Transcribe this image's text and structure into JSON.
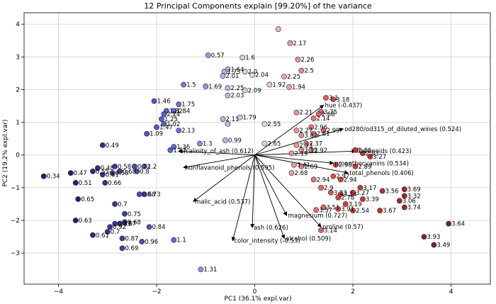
{
  "chart_data": {
    "type": "scatter",
    "title": "12 Principal Components explain [99.20%] of the variance",
    "xlabel": "PC1 (36.1% expl.var)",
    "ylabel": "PC2 (19.2% expl.var)",
    "xlim": [
      -4.7,
      4.8
    ],
    "ylim": [
      -3.95,
      4.35
    ],
    "xticks": [
      -4,
      -2,
      0,
      2,
      4
    ],
    "yticks": [
      -3,
      -2,
      -1,
      0,
      1,
      2,
      3,
      4
    ],
    "grid": true,
    "points": [
      {
        "x": 0.48,
        "y": 3.85,
        "label": ""
      },
      {
        "x": 0.72,
        "y": 3.42,
        "label": "2.17"
      },
      {
        "x": -0.95,
        "y": 3.05,
        "label": "0.57"
      },
      {
        "x": -0.25,
        "y": 2.98,
        "label": "1.6"
      },
      {
        "x": 0.88,
        "y": 2.92,
        "label": "2.26"
      },
      {
        "x": 0.95,
        "y": 2.58,
        "label": "2.5"
      },
      {
        "x": -0.55,
        "y": 2.62,
        "label": "1.64"
      },
      {
        "x": -0.62,
        "y": 2.55,
        "label": "1.73"
      },
      {
        "x": -0.65,
        "y": 2.42,
        "label": "2.01"
      },
      {
        "x": -0.2,
        "y": 2.55,
        "label": "2.0"
      },
      {
        "x": -0.05,
        "y": 2.45,
        "label": "2.04"
      },
      {
        "x": 0.6,
        "y": 2.4,
        "label": "2.25"
      },
      {
        "x": -1.45,
        "y": 2.15,
        "label": "1.5"
      },
      {
        "x": -1.0,
        "y": 2.1,
        "label": "1.69"
      },
      {
        "x": -0.55,
        "y": 2.05,
        "label": "2.25"
      },
      {
        "x": -0.55,
        "y": 1.82,
        "label": "2.03"
      },
      {
        "x": -0.2,
        "y": 1.98,
        "label": "2.09"
      },
      {
        "x": 0.3,
        "y": 2.15,
        "label": "1.92"
      },
      {
        "x": 0.7,
        "y": 2.08,
        "label": "1.94"
      },
      {
        "x": -2.05,
        "y": 1.65,
        "label": "1.46"
      },
      {
        "x": -1.55,
        "y": 1.55,
        "label": "1.75"
      },
      {
        "x": -1.65,
        "y": 1.35,
        "label": "1.84"
      },
      {
        "x": -1.8,
        "y": 1.35,
        "label": "1.82"
      },
      {
        "x": -1.85,
        "y": 1.25,
        "label": "2.24"
      },
      {
        "x": -1.9,
        "y": 1.1,
        "label": "1.25"
      },
      {
        "x": -1.85,
        "y": 0.95,
        "label": "1.02"
      },
      {
        "x": -2.0,
        "y": 0.85,
        "label": "1.47"
      },
      {
        "x": -1.55,
        "y": 0.75,
        "label": "2.13"
      },
      {
        "x": -2.2,
        "y": 0.65,
        "label": "1.09"
      },
      {
        "x": -0.3,
        "y": 1.15,
        "label": "1.79"
      },
      {
        "x": -0.65,
        "y": 1.1,
        "label": "2.11"
      },
      {
        "x": 0.2,
        "y": 0.95,
        "label": "2.55"
      },
      {
        "x": 0.85,
        "y": 1.3,
        "label": "2.21"
      },
      {
        "x": -0.55,
        "y": 0.95,
        "label": ""
      },
      {
        "x": -0.6,
        "y": 0.45,
        "label": "0.99"
      },
      {
        "x": -1.65,
        "y": 0.25,
        "label": "1.36"
      },
      {
        "x": -1.72,
        "y": 0.15,
        "label": "1.57"
      },
      {
        "x": -1.12,
        "y": 0.35,
        "label": "1.3"
      },
      {
        "x": 0.2,
        "y": 0.35,
        "label": "2.65"
      },
      {
        "x": 1.45,
        "y": 1.75,
        "label": "3.1"
      },
      {
        "x": 1.6,
        "y": 1.7,
        "label": "3.18"
      },
      {
        "x": 1.35,
        "y": 1.32,
        "label": "3.75"
      },
      {
        "x": 1.3,
        "y": 1.25,
        "label": "2.68"
      },
      {
        "x": 1.2,
        "y": 1.12,
        "label": "2.14"
      },
      {
        "x": 1.15,
        "y": 0.85,
        "label": "2.96"
      },
      {
        "x": 1.4,
        "y": 0.75,
        "label": "2.99"
      },
      {
        "x": 1.2,
        "y": 0.65,
        "label": "2.61"
      },
      {
        "x": 0.85,
        "y": 0.75,
        "label": "2.27"
      },
      {
        "x": 0.95,
        "y": 0.6,
        "label": "3.82"
      },
      {
        "x": 1.05,
        "y": 0.35,
        "label": "2.37"
      },
      {
        "x": 0.85,
        "y": 0.3,
        "label": "2.53"
      },
      {
        "x": 0.95,
        "y": 0.15,
        "label": "3.15"
      },
      {
        "x": 1.15,
        "y": 0.15,
        "label": "2.92"
      },
      {
        "x": 0.75,
        "y": 0.05,
        "label": "2.19"
      },
      {
        "x": 2.05,
        "y": 0.15,
        "label": "2.86"
      },
      {
        "x": 2.2,
        "y": 0.05,
        "label": "2.83"
      },
      {
        "x": 2.35,
        "y": -0.05,
        "label": "3.27"
      },
      {
        "x": 1.65,
        "y": -0.3,
        "label": "2.98"
      },
      {
        "x": 2.05,
        "y": -0.35,
        "label": "2.89"
      },
      {
        "x": 0.8,
        "y": -0.3,
        "label": "3.41"
      },
      {
        "x": 0.95,
        "y": -0.35,
        "label": "2.69"
      },
      {
        "x": 0.75,
        "y": -0.55,
        "label": "2.68"
      },
      {
        "x": 1.2,
        "y": -0.75,
        "label": "2.94"
      },
      {
        "x": 1.75,
        "y": -0.75,
        "label": "2.94"
      },
      {
        "x": 1.6,
        "y": -0.65,
        "label": "2.97"
      },
      {
        "x": 1.35,
        "y": -1.0,
        "label": "2.9"
      },
      {
        "x": 1.55,
        "y": -1.15,
        "label": "3.23"
      },
      {
        "x": 1.7,
        "y": -1.3,
        "label": "2.78"
      },
      {
        "x": 1.75,
        "y": -1.2,
        "label": "3.24"
      },
      {
        "x": 2.0,
        "y": -1.15,
        "label": "3.27"
      },
      {
        "x": 2.15,
        "y": -1.0,
        "label": "3.17"
      },
      {
        "x": 2.6,
        "y": -1.1,
        "label": "3.56"
      },
      {
        "x": 3.05,
        "y": -1.05,
        "label": "3.69"
      },
      {
        "x": 3.05,
        "y": -1.25,
        "label": "3.32"
      },
      {
        "x": 2.95,
        "y": -1.4,
        "label": "3.06"
      },
      {
        "x": 3.05,
        "y": -1.6,
        "label": "3.74"
      },
      {
        "x": 2.2,
        "y": -1.35,
        "label": "3.39"
      },
      {
        "x": 1.85,
        "y": -1.5,
        "label": "3.19"
      },
      {
        "x": 1.7,
        "y": -1.65,
        "label": "3.91"
      },
      {
        "x": 2.0,
        "y": -1.7,
        "label": "2.54"
      },
      {
        "x": 2.55,
        "y": -1.7,
        "label": "3.67"
      },
      {
        "x": 1.4,
        "y": -1.6,
        "label": "3.51"
      },
      {
        "x": 1.25,
        "y": -1.68,
        "label": "3.57"
      },
      {
        "x": 1.35,
        "y": -2.3,
        "label": "3.14"
      },
      {
        "x": 3.95,
        "y": -2.1,
        "label": "3.64"
      },
      {
        "x": 3.45,
        "y": -2.5,
        "label": "3.93"
      },
      {
        "x": 3.65,
        "y": -2.75,
        "label": "3.49"
      },
      {
        "x": -3.1,
        "y": 0.3,
        "label": "0.49"
      },
      {
        "x": -4.3,
        "y": -0.65,
        "label": "0.34"
      },
      {
        "x": -3.75,
        "y": -0.55,
        "label": "0.47"
      },
      {
        "x": -3.65,
        "y": -0.85,
        "label": "0.51"
      },
      {
        "x": -3.2,
        "y": -0.4,
        "label": "0.48"
      },
      {
        "x": -3.3,
        "y": -0.5,
        "label": "0.55"
      },
      {
        "x": -3.1,
        "y": -0.6,
        "label": "0.61"
      },
      {
        "x": -3.05,
        "y": -0.85,
        "label": "0.66"
      },
      {
        "x": -2.85,
        "y": -0.35,
        "label": "0.58"
      },
      {
        "x": -2.75,
        "y": -0.5,
        "label": "0.68"
      },
      {
        "x": -2.9,
        "y": -0.55,
        "label": "0.58"
      },
      {
        "x": -2.45,
        "y": -0.35,
        "label": "0.72"
      },
      {
        "x": -2.4,
        "y": -0.5,
        "label": "0.8"
      },
      {
        "x": -2.25,
        "y": -0.35,
        "label": "1.2"
      },
      {
        "x": -3.6,
        "y": -1.35,
        "label": "0.65"
      },
      {
        "x": -2.35,
        "y": -1.2,
        "label": "0.68"
      },
      {
        "x": -2.25,
        "y": -1.2,
        "label": "0.73"
      },
      {
        "x": -2.85,
        "y": -1.5,
        "label": "0.7"
      },
      {
        "x": -2.65,
        "y": -1.8,
        "label": "0.75"
      },
      {
        "x": -3.65,
        "y": -2.0,
        "label": "0.63"
      },
      {
        "x": -2.95,
        "y": -2.2,
        "label": "0.92"
      },
      {
        "x": -2.85,
        "y": -2.1,
        "label": "0.83"
      },
      {
        "x": -2.75,
        "y": -2.1,
        "label": "0.87"
      },
      {
        "x": -2.65,
        "y": -2.05,
        "label": "0.68"
      },
      {
        "x": -3.0,
        "y": -2.35,
        "label": "0.7"
      },
      {
        "x": -2.7,
        "y": -2.55,
        "label": "0.87"
      },
      {
        "x": -2.15,
        "y": -2.2,
        "label": "0.84"
      },
      {
        "x": -3.3,
        "y": -2.45,
        "label": "0.61"
      },
      {
        "x": -2.3,
        "y": -2.65,
        "label": "0.96"
      },
      {
        "x": -2.7,
        "y": -2.85,
        "label": "0.69"
      },
      {
        "x": -1.65,
        "y": -2.6,
        "label": "1.1"
      },
      {
        "x": -1.1,
        "y": -3.5,
        "label": "1.31"
      }
    ],
    "loadings": [
      {
        "name": "alcalinity_of_ash (0.612)",
        "x": -1.55,
        "y": 0.12
      },
      {
        "name": "nonflavanoid_phenols (0.595)",
        "x": -1.45,
        "y": -0.38
      },
      {
        "name": "malic_acid (0.537)",
        "x": -1.25,
        "y": -1.42
      },
      {
        "name": "color_intensity (-0.53)",
        "x": -0.45,
        "y": -2.62
      },
      {
        "name": "ash (0.626)",
        "x": -0.05,
        "y": -2.22
      },
      {
        "name": "alcohol (0.509)",
        "x": 0.6,
        "y": -2.55
      },
      {
        "name": "magnesium (0.727)",
        "x": 0.65,
        "y": -1.85
      },
      {
        "name": "proline (0.57)",
        "x": 1.35,
        "y": -2.2
      },
      {
        "name": "flavanoids (0.423)",
        "x": 2.05,
        "y": 0.12
      },
      {
        "name": "od280/od315_of_diluted_wines (0.524)",
        "x": 1.8,
        "y": 0.8
      },
      {
        "name": "hue (-0.437)",
        "x": 1.4,
        "y": 1.52
      },
      {
        "name": "proanthocyanins (0.534)",
        "x": 1.6,
        "y": -0.25
      },
      {
        "name": "total_phenols (0.406)",
        "x": 1.9,
        "y": -0.55
      }
    ]
  }
}
